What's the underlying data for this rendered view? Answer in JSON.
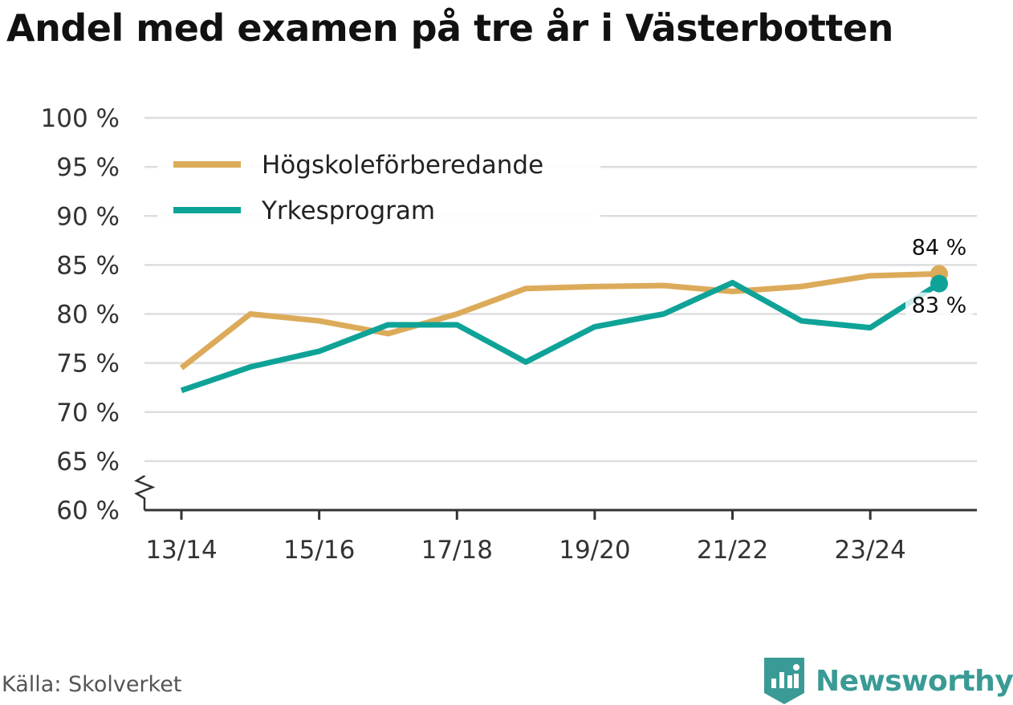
{
  "title": "Andel med examen på tre år i Västerbotten",
  "source": "Källa: Skolverket",
  "brand": {
    "name": "Newsworthy",
    "color": "#3a9a95",
    "icon": "bar-chart-bubble-icon"
  },
  "chart_data": {
    "type": "line",
    "title": "Andel med examen på tre år i Västerbotten",
    "x": [
      "13/14",
      "14/15",
      "15/16",
      "16/17",
      "17/18",
      "18/19",
      "19/20",
      "20/21",
      "21/22",
      "22/23",
      "23/24",
      "24/25"
    ],
    "x_tick_labels": [
      "13/14",
      "15/16",
      "17/18",
      "19/20",
      "21/22",
      "23/24"
    ],
    "ylim": [
      60,
      100
    ],
    "y_ticks": [
      60,
      65,
      70,
      75,
      80,
      85,
      90,
      95,
      100
    ],
    "y_tick_labels": [
      "60 %",
      "65 %",
      "70 %",
      "75 %",
      "80 %",
      "85 %",
      "90 %",
      "95 %",
      "100 %"
    ],
    "y_axis_break": true,
    "grid": true,
    "legend": "top-left",
    "series": [
      {
        "name": "Högskoleförberedande",
        "color": "#dcab5a",
        "values": [
          74.5,
          80.0,
          79.3,
          78.0,
          80.0,
          82.6,
          82.8,
          82.9,
          82.3,
          82.8,
          83.9,
          84.1
        ],
        "end_label": "84 %"
      },
      {
        "name": "Yrkesprogram",
        "color": "#0fa398",
        "values": [
          72.2,
          74.6,
          76.2,
          78.9,
          78.9,
          75.1,
          78.7,
          80.0,
          83.2,
          79.3,
          78.6,
          83.1
        ],
        "end_label": "83 %"
      }
    ]
  }
}
